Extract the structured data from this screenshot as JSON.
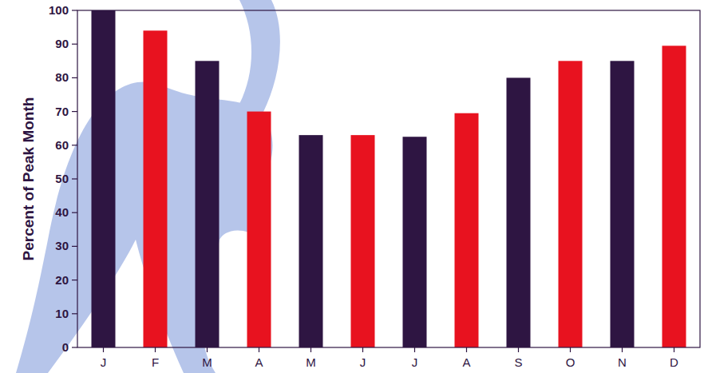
{
  "chart_data": {
    "type": "bar",
    "y_label": "Percent of Peak Month",
    "categories": [
      "J",
      "F",
      "M",
      "A",
      "M",
      "J",
      "J",
      "A",
      "S",
      "O",
      "N",
      "D"
    ],
    "values": [
      100,
      94,
      85,
      70,
      63,
      63,
      62.5,
      69.5,
      80,
      85,
      85,
      89.5
    ],
    "colors": [
      "#2e1542",
      "#e8121f",
      "#2e1542",
      "#e8121f",
      "#2e1542",
      "#e8121f",
      "#2e1542",
      "#e8121f",
      "#2e1542",
      "#e8121f",
      "#2e1542",
      "#e8121f"
    ],
    "ylim": [
      0,
      100
    ],
    "yticks": [
      0,
      10,
      20,
      30,
      40,
      50,
      60,
      70,
      80,
      90,
      100
    ],
    "grid": false
  }
}
